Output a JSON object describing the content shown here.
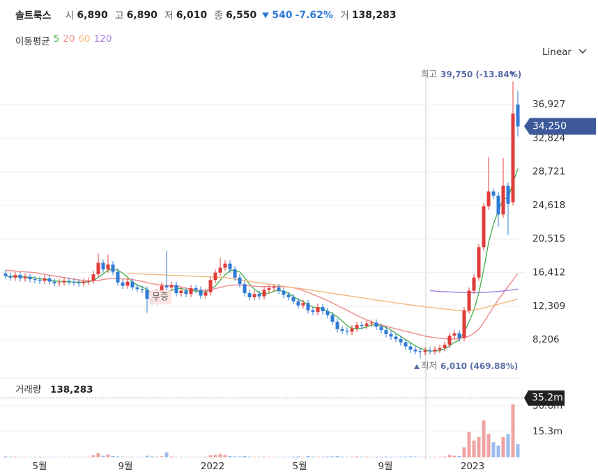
{
  "header": {
    "name": "솔트룩스",
    "quote": [
      {
        "label": "시",
        "value": "6,890"
      },
      {
        "label": "고",
        "value": "6,890"
      },
      {
        "label": "저",
        "value": "6,010"
      },
      {
        "label": "종",
        "value": "6,550"
      }
    ],
    "change": "540",
    "change_pct": "-7.62%",
    "volume_label": "거",
    "volume": "138,283"
  },
  "scale_mode": "Linear",
  "chart_data": {
    "type": "candlestick",
    "ma_label": "이동평균",
    "up_color": "#e03c3c",
    "down_color": "#2f7ad6",
    "volume_up_color": "#f0a3a3",
    "volume_down_color": "#9bbcec",
    "open": [
      16300,
      16000,
      15800,
      16100,
      15700,
      15900,
      15600,
      15500,
      15400,
      15700,
      15300,
      15100,
      15200,
      15400,
      15300,
      15200,
      15100,
      15300,
      15400,
      16200,
      17600,
      16800,
      17400,
      16500,
      15200,
      14800,
      15300,
      14600,
      14400,
      14300,
      13200,
      12900,
      14000,
      14800,
      14600,
      14900,
      13900,
      14200,
      13800,
      14500,
      14300,
      13600,
      14000,
      15500,
      16400,
      17000,
      17500,
      16800,
      15800,
      15000,
      13900,
      13400,
      13800,
      13500,
      14300,
      14500,
      14600,
      14200,
      13700,
      13400,
      12900,
      12400,
      12700,
      11800,
      11600,
      12200,
      11700,
      11200,
      10400,
      9500,
      9300,
      9200,
      9600,
      10000,
      9900,
      10200,
      10300,
      9800,
      9400,
      8900,
      8600,
      8300,
      7900,
      7400,
      7000,
      6800,
      6700,
      6900,
      6800,
      7000,
      7200,
      7600,
      8700,
      9000,
      8400,
      11800,
      14200,
      15800,
      19500,
      24500,
      26300,
      25800,
      23500,
      27000,
      25000,
      36900
    ],
    "high": [
      16700,
      16400,
      16500,
      16500,
      16300,
      16300,
      16000,
      15900,
      16100,
      16100,
      15700,
      15600,
      15800,
      15800,
      15700,
      15600,
      15700,
      15800,
      16600,
      18700,
      18000,
      18600,
      17800,
      16900,
      15600,
      15700,
      15700,
      15000,
      14800,
      14700,
      13600,
      14400,
      15200,
      19100,
      15300,
      15300,
      14600,
      14600,
      14900,
      14900,
      14700,
      14400,
      15900,
      16800,
      18200,
      17900,
      17900,
      17200,
      16200,
      15400,
      14300,
      14200,
      14200,
      14700,
      14900,
      15000,
      15000,
      14600,
      14100,
      13800,
      13300,
      13100,
      13100,
      12200,
      12600,
      12600,
      12100,
      11600,
      10800,
      9900,
      9700,
      10000,
      10400,
      10400,
      10600,
      10700,
      10700,
      10200,
      9800,
      9300,
      9000,
      8700,
      8300,
      7800,
      7400,
      7200,
      7300,
      7300,
      7400,
      7600,
      8000,
      9100,
      9400,
      9400,
      12200,
      14600,
      16200,
      19900,
      24900,
      30500,
      26700,
      26200,
      30400,
      27400,
      39750,
      38600
    ],
    "low": [
      15600,
      15400,
      15400,
      15300,
      15300,
      15200,
      15100,
      15000,
      15000,
      14900,
      14700,
      14700,
      14800,
      14900,
      14800,
      14700,
      14700,
      14900,
      15000,
      15800,
      16400,
      16400,
      16100,
      14800,
      14400,
      14400,
      14200,
      14000,
      13900,
      11500,
      12500,
      12500,
      13600,
      14200,
      14200,
      13500,
      13500,
      13400,
      13400,
      13900,
      13200,
      13200,
      13600,
      15100,
      16000,
      16600,
      16400,
      15400,
      14600,
      13500,
      13000,
      13000,
      13100,
      13100,
      13900,
      14100,
      13800,
      13300,
      13000,
      12500,
      12000,
      12000,
      11400,
      11200,
      11200,
      11300,
      10800,
      10000,
      9100,
      8900,
      8800,
      8800,
      9200,
      9500,
      9500,
      9800,
      9400,
      9000,
      8500,
      8200,
      7900,
      7500,
      7000,
      6600,
      6400,
      6010,
      6300,
      6400,
      6400,
      6600,
      6800,
      7200,
      8300,
      8000,
      8000,
      11400,
      13800,
      15400,
      19100,
      24100,
      25400,
      22000,
      23100,
      21000,
      24600,
      33000
    ],
    "close": [
      16000,
      15800,
      16100,
      15700,
      15900,
      15600,
      15500,
      15400,
      15700,
      15300,
      15100,
      15200,
      15400,
      15300,
      15200,
      15100,
      15300,
      15400,
      16200,
      17600,
      16800,
      17400,
      16500,
      15200,
      14800,
      15300,
      14600,
      14400,
      14300,
      13200,
      12900,
      14000,
      14800,
      14600,
      14900,
      13900,
      14200,
      13800,
      14500,
      14300,
      13600,
      14000,
      15500,
      16400,
      17000,
      17500,
      16800,
      15800,
      15000,
      13900,
      13400,
      13800,
      13500,
      14300,
      14500,
      14600,
      14200,
      13700,
      13400,
      12900,
      12400,
      12700,
      11800,
      11600,
      12200,
      11700,
      11200,
      10400,
      9500,
      9300,
      9200,
      9600,
      10000,
      9900,
      10200,
      10300,
      9800,
      9400,
      8900,
      8600,
      8300,
      7900,
      7400,
      7000,
      6800,
      6700,
      6900,
      6800,
      7000,
      7200,
      7600,
      8700,
      9000,
      8400,
      11800,
      14200,
      15800,
      19500,
      24500,
      26300,
      25800,
      23500,
      27000,
      24800,
      35800,
      34250
    ],
    "volume": [
      0.6,
      0.4,
      0.5,
      0.3,
      0.4,
      0.3,
      0.3,
      0.4,
      0.3,
      0.3,
      0.3,
      0.2,
      0.3,
      0.3,
      0.2,
      0.3,
      0.3,
      0.4,
      1.2,
      2.5,
      1.0,
      1.8,
      0.8,
      0.6,
      0.5,
      0.4,
      0.4,
      0.3,
      0.3,
      1.0,
      0.6,
      0.5,
      0.7,
      3.0,
      0.6,
      0.4,
      0.4,
      0.3,
      0.4,
      0.3,
      0.3,
      0.4,
      1.2,
      1.5,
      2.0,
      1.4,
      0.8,
      0.6,
      0.6,
      0.9,
      0.5,
      0.4,
      0.4,
      0.5,
      0.4,
      0.4,
      0.3,
      0.4,
      0.4,
      0.5,
      0.6,
      0.4,
      0.8,
      0.5,
      0.4,
      0.4,
      0.5,
      0.6,
      0.9,
      0.5,
      0.4,
      0.5,
      0.6,
      0.4,
      0.5,
      0.4,
      0.4,
      0.4,
      0.5,
      0.4,
      0.4,
      0.5,
      0.5,
      0.6,
      0.5,
      0.4,
      0.4,
      0.3,
      0.3,
      0.4,
      0.5,
      1.5,
      1.0,
      0.8,
      6.0,
      15.0,
      10.0,
      12.0,
      22.0,
      14.0,
      9.0,
      7.0,
      12.0,
      14.0,
      31.5,
      7.8
    ],
    "moving_averages": [
      {
        "name": "5",
        "color": "#4caf50",
        "values": [
          16000,
          15900,
          15950,
          15900,
          15900,
          15820,
          15760,
          15620,
          15620,
          15500,
          15400,
          15340,
          15340,
          15260,
          15240,
          15240,
          15260,
          15260,
          15440,
          15800,
          16260,
          16680,
          16900,
          16700,
          16340,
          15840,
          15280,
          14860,
          14680,
          14360,
          13840,
          13760,
          13840,
          13900,
          14240,
          14440,
          14480,
          14280,
          14260,
          14140,
          14080,
          14040,
          14400,
          14760,
          15500,
          16120,
          16640,
          16700,
          16500,
          15800,
          14980,
          14380,
          13920,
          13780,
          13900,
          14140,
          14220,
          14140,
          13880,
          13500,
          13120,
          12880,
          12480,
          12200,
          12100,
          12000,
          11700,
          11420,
          11000,
          10500,
          9920,
          9600,
          9520,
          9600,
          9780,
          10000,
          10040,
          9920,
          9700,
          9400,
          9000,
          8620,
          8220,
          7840,
          7480,
          7160,
          6960,
          6840,
          6840,
          6900,
          7100,
          7460,
          7900,
          8180,
          9100,
          10420,
          11840,
          13940,
          16760,
          20060,
          22340,
          23920,
          25420,
          25480,
          27380,
          29070
        ]
      },
      {
        "name": "20",
        "color": "#ef8a8a",
        "values": [
          16700,
          16650,
          16600,
          16550,
          16500,
          16450,
          16400,
          16300,
          16200,
          16100,
          16000,
          15900,
          15800,
          15700,
          15600,
          15500,
          15450,
          15400,
          15400,
          15450,
          15550,
          15650,
          15700,
          15700,
          15650,
          15600,
          15550,
          15450,
          15350,
          15200,
          15050,
          14950,
          14900,
          14850,
          14800,
          14750,
          14650,
          14500,
          14400,
          14300,
          14250,
          14250,
          14300,
          14450,
          14600,
          14750,
          14850,
          14900,
          14900,
          14850,
          14800,
          14750,
          14700,
          14700,
          14700,
          14700,
          14700,
          14700,
          14650,
          14550,
          14400,
          14200,
          14000,
          13750,
          13500,
          13250,
          13000,
          12700,
          12400,
          12100,
          11800,
          11500,
          11200,
          10900,
          10650,
          10400,
          10200,
          10000,
          9850,
          9700,
          9550,
          9400,
          9250,
          9100,
          8950,
          8800,
          8650,
          8550,
          8450,
          8400,
          8350,
          8300,
          8300,
          8350,
          8450,
          8650,
          9000,
          9500,
          10300,
          11300,
          12200,
          13100,
          13900,
          14700,
          15500,
          16300
        ]
      },
      {
        "name": "60",
        "color": "#f2b880",
        "values": [
          null,
          null,
          null,
          null,
          null,
          null,
          null,
          null,
          null,
          null,
          null,
          null,
          null,
          null,
          null,
          null,
          null,
          null,
          null,
          null,
          null,
          null,
          null,
          null,
          null,
          16300,
          16280,
          16250,
          16230,
          16200,
          16180,
          16150,
          16130,
          16100,
          16080,
          16050,
          16030,
          16000,
          15980,
          15950,
          15930,
          15900,
          15880,
          15850,
          15830,
          15800,
          15710,
          15620,
          15530,
          15440,
          15350,
          15260,
          15170,
          15080,
          14990,
          14900,
          14820,
          14740,
          14660,
          14580,
          14500,
          14410,
          14320,
          14230,
          14140,
          14050,
          13960,
          13870,
          13780,
          13690,
          13600,
          13510,
          13420,
          13330,
          13240,
          13150,
          13060,
          12970,
          12880,
          12790,
          12700,
          12620,
          12540,
          12460,
          12380,
          12300,
          12230,
          12160,
          12100,
          12030,
          11960,
          11900,
          11830,
          11770,
          11700,
          11750,
          11850,
          11950,
          12100,
          12250,
          12400,
          12550,
          12700,
          12850,
          13000,
          13200
        ]
      },
      {
        "name": "120",
        "color": "#a57fe0",
        "values": [
          null,
          null,
          null,
          null,
          null,
          null,
          null,
          null,
          null,
          null,
          null,
          null,
          null,
          null,
          null,
          null,
          null,
          null,
          null,
          null,
          null,
          null,
          null,
          null,
          null,
          null,
          null,
          null,
          null,
          null,
          null,
          null,
          null,
          null,
          null,
          null,
          null,
          null,
          null,
          null,
          null,
          null,
          null,
          null,
          null,
          null,
          null,
          null,
          null,
          null,
          null,
          null,
          null,
          null,
          null,
          null,
          null,
          null,
          null,
          null,
          null,
          null,
          null,
          null,
          null,
          null,
          null,
          null,
          null,
          null,
          null,
          null,
          null,
          null,
          null,
          null,
          null,
          null,
          null,
          null,
          null,
          null,
          null,
          null,
          null,
          null,
          null,
          14200,
          14150,
          14100,
          14080,
          14050,
          14020,
          14000,
          13980,
          13970,
          13960,
          13970,
          13990,
          14020,
          14060,
          14110,
          14170,
          14240,
          14320,
          14400
        ]
      }
    ],
    "ylim": [
      3797,
      42024
    ],
    "yticks": [
      {
        "value": 8206,
        "label": "8,206"
      },
      {
        "value": 12309,
        "label": "12,309"
      },
      {
        "value": 16412,
        "label": "16,412"
      },
      {
        "value": 20515,
        "label": "20,515"
      },
      {
        "value": 24618,
        "label": "24,618"
      },
      {
        "value": 28721,
        "label": "28,721"
      },
      {
        "value": 32824,
        "label": "32,824"
      },
      {
        "value": 36927,
        "label": "36,927"
      }
    ],
    "grid": true,
    "last_price": {
      "value": 34250,
      "label": "34,250"
    },
    "high_annotation": {
      "label": "최고",
      "value": "39,750",
      "pct": "(-13.84%)"
    },
    "low_annotation": {
      "label": "최저",
      "value": "6,010",
      "pct": "(469.88%)"
    },
    "event_annotation": "무증",
    "xtick_labels": [
      "5월",
      "9월",
      "2022",
      "5월",
      "9월",
      "2023"
    ],
    "volume_title": "거래량",
    "volume_last_text": "138,283",
    "volume_ylim": [
      0,
      45
    ],
    "volume_yticks": [
      {
        "value": 15.3,
        "label": "15.3m"
      },
      {
        "value": 30.6,
        "label": "30.6m"
      }
    ],
    "volume_cursor": {
      "value": 35.2,
      "label": "35.2m"
    }
  }
}
